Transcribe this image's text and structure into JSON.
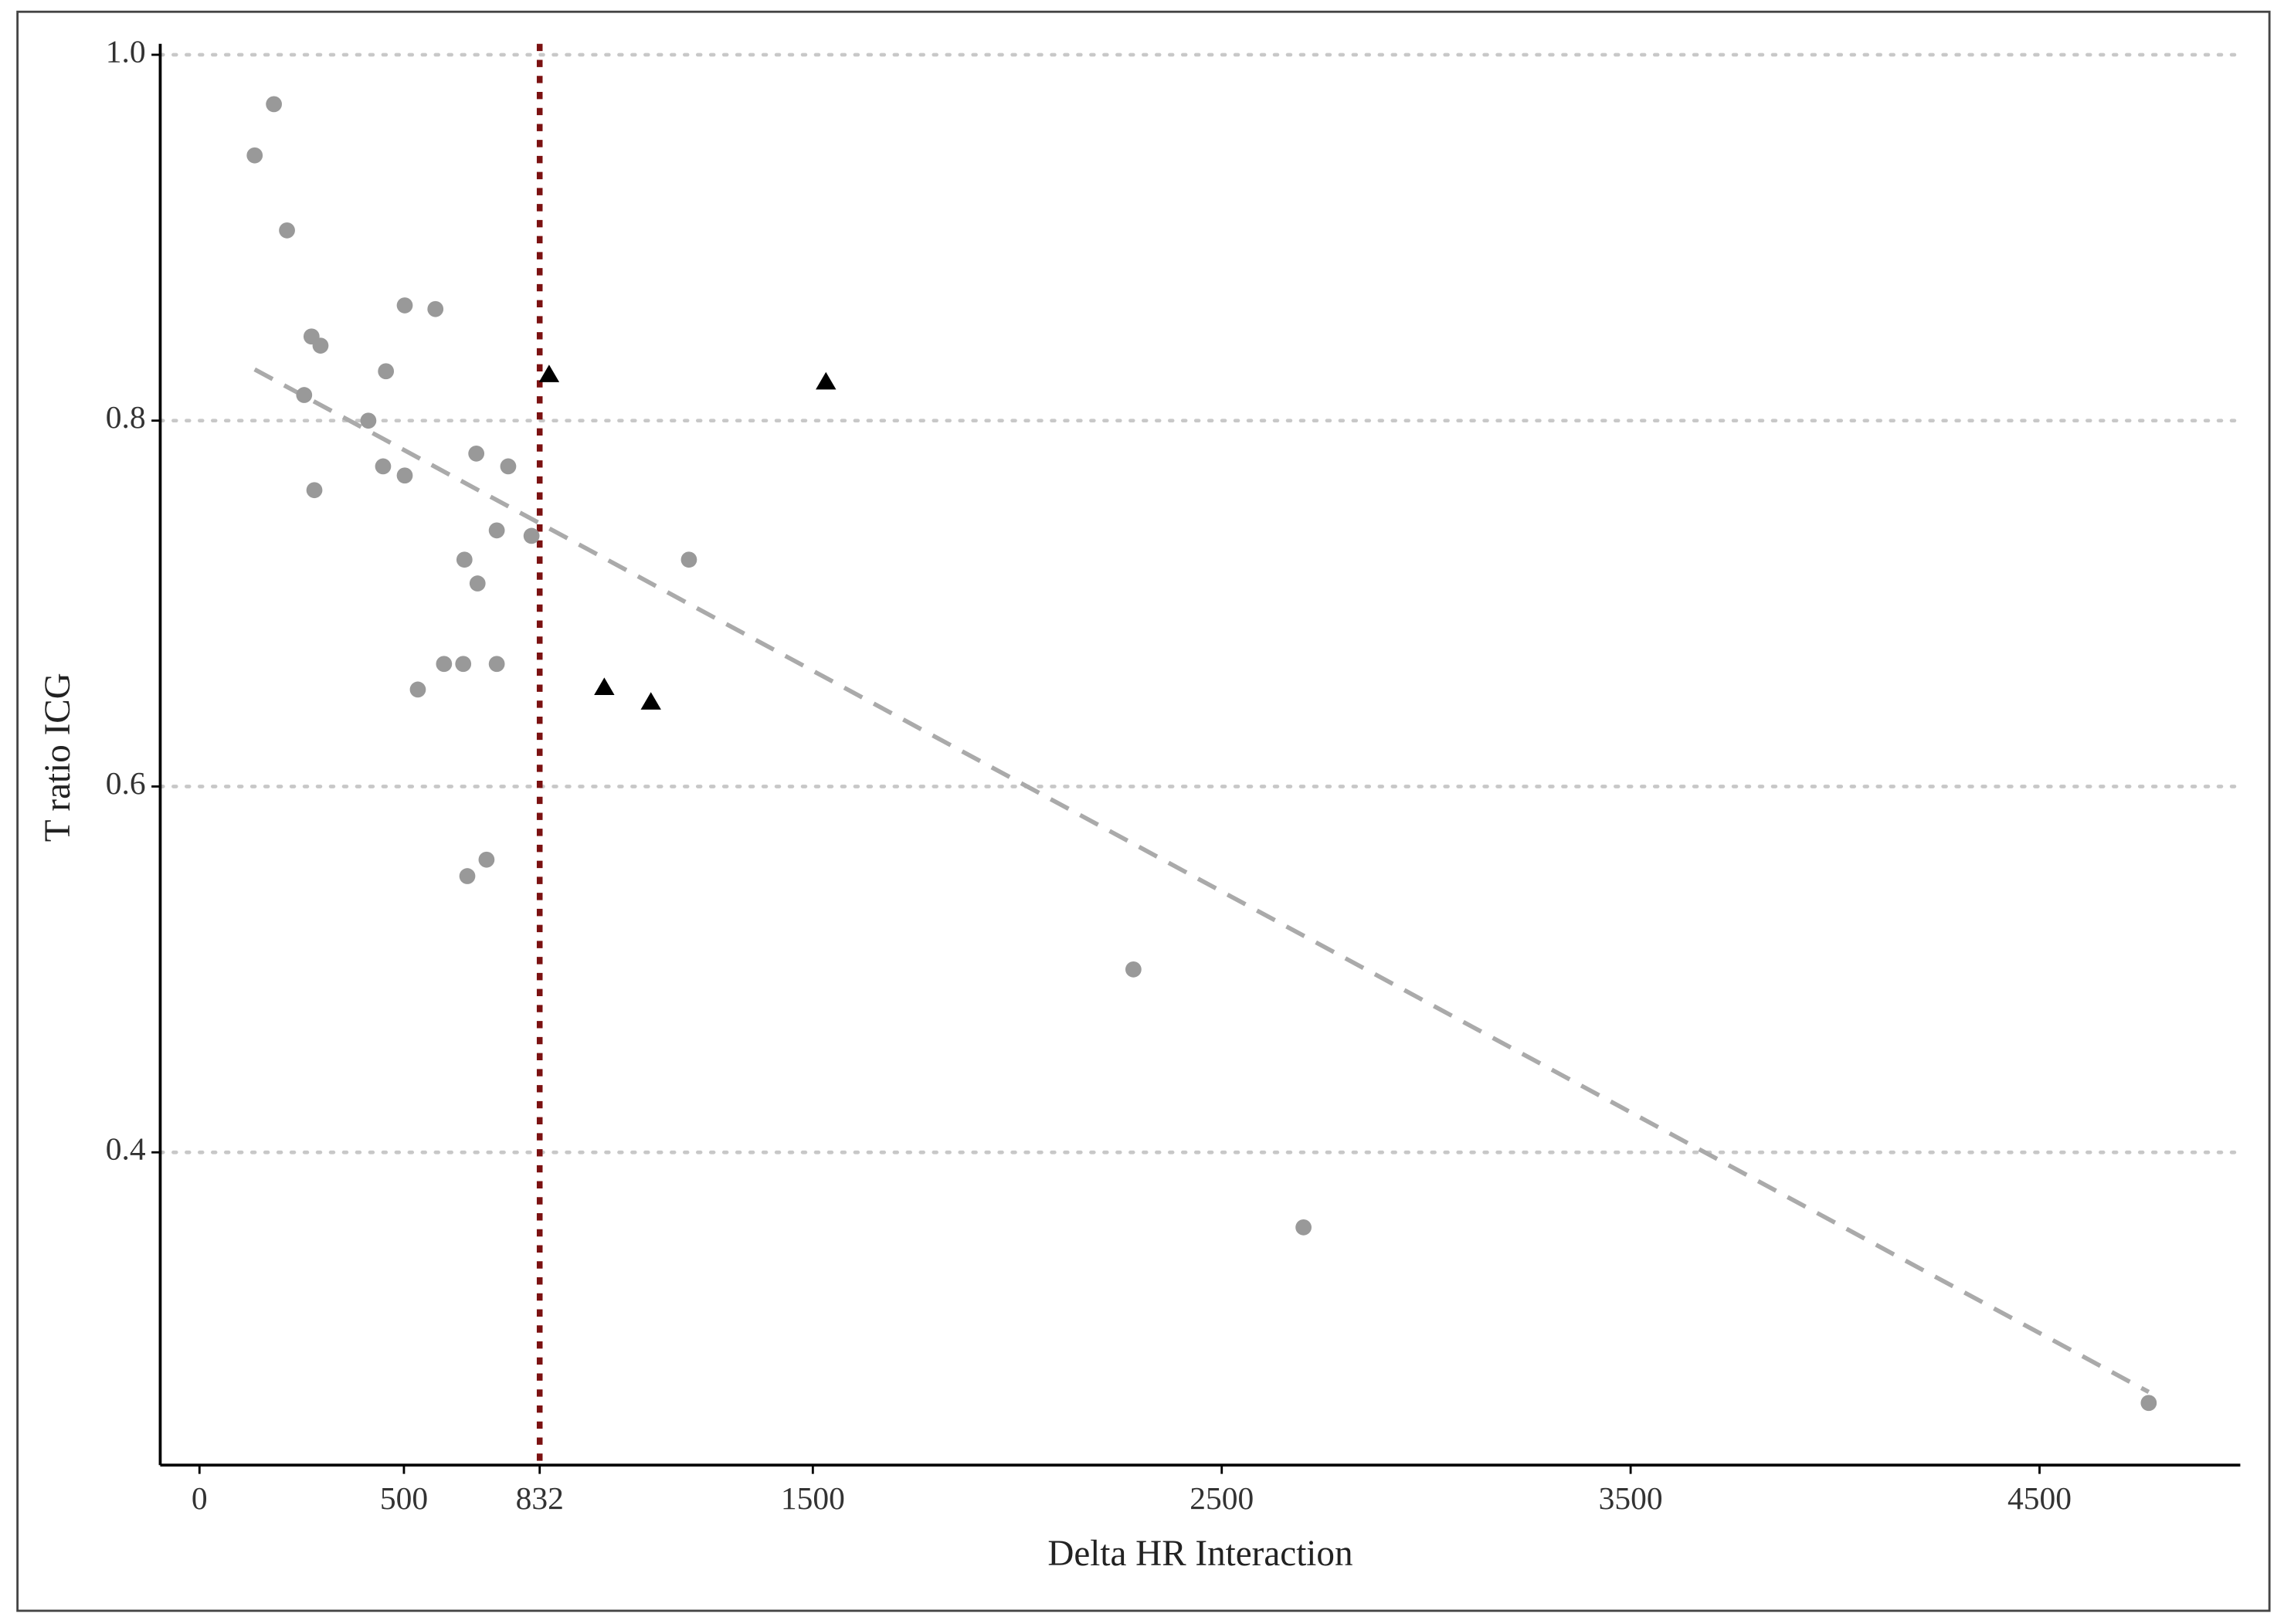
{
  "chart_data": {
    "type": "scatter",
    "x_label": "Delta HR Interaction",
    "y_label": "T ratio ICG",
    "xlim": [
      -96,
      4991
    ],
    "ylim": [
      0.229,
      1.006
    ],
    "xticks": [
      0,
      500,
      832,
      1500,
      2500,
      3500,
      4500
    ],
    "yticks": [
      {
        "value": 1,
        "label": "1.0"
      },
      0.8,
      0.6,
      0.4
    ],
    "grid": "y",
    "grid_color": "#c8c8c8",
    "vline": {
      "x": 832,
      "color": "#7b1111"
    },
    "trendline": {
      "color": "#aaaaaa",
      "x": [
        135,
        4767
      ],
      "y": [
        0.828,
        0.269
      ]
    },
    "series": [
      {
        "marker": "circle",
        "color": "#999999",
        "x": [
          135,
          182,
          214,
          274,
          296,
          256,
          281,
          413,
          456,
          502,
          577,
          449,
          502,
          677,
          755,
          727,
          812,
          648,
          680,
          1197,
          534,
          598,
          645,
          727,
          655,
          702,
          2284,
          2700,
          4767
        ],
        "y": [
          0.945,
          0.973,
          0.904,
          0.846,
          0.841,
          0.814,
          0.762,
          0.8,
          0.827,
          0.863,
          0.861,
          0.775,
          0.77,
          0.782,
          0.775,
          0.74,
          0.737,
          0.724,
          0.711,
          0.724,
          0.653,
          0.667,
          0.667,
          0.667,
          0.551,
          0.56,
          0.5,
          0.359,
          0.263
        ]
      },
      {
        "marker": "triangle",
        "color": "#000000",
        "x": [
          855,
          1532,
          990,
          1104
        ],
        "y": [
          0.825,
          0.821,
          0.654,
          0.646
        ]
      }
    ]
  }
}
